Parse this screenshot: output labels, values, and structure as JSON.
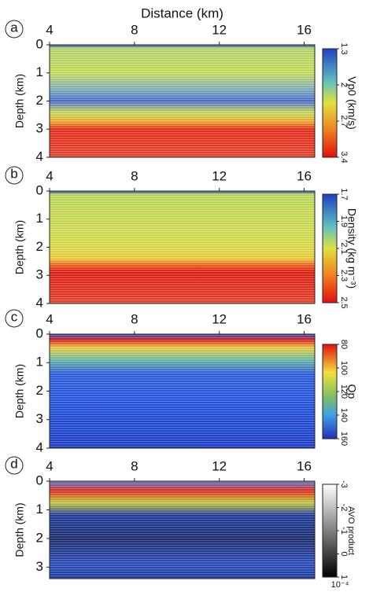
{
  "chart_data": [
    {
      "type": "image",
      "label": "a",
      "title": "Distance (km)",
      "ylabel": "Depth (km)",
      "xlim": [
        4,
        16.5
      ],
      "xticks": [
        4,
        8,
        12,
        16
      ],
      "ylim": [
        0,
        4
      ],
      "yticks": [
        0,
        1,
        2,
        3,
        4
      ],
      "colorbar": {
        "label": "Vp0 (km/s)",
        "lim": [
          1.3,
          3.4
        ],
        "ticks": [
          1.3,
          2,
          2.7,
          3.4
        ]
      }
    },
    {
      "type": "image",
      "label": "b",
      "ylabel": "Depth (km)",
      "xlim": [
        4,
        16.5
      ],
      "xticks": [
        4,
        8,
        12,
        16
      ],
      "ylim": [
        0,
        4
      ],
      "yticks": [
        0,
        1,
        2,
        3,
        4
      ],
      "colorbar": {
        "label": "Density (kg m⁻³)",
        "lim": [
          1.7,
          2.5
        ],
        "ticks": [
          1.7,
          1.9,
          2.1,
          2.3,
          2.5
        ]
      }
    },
    {
      "type": "image",
      "label": "c",
      "ylabel": "Depth (km)",
      "xlim": [
        4,
        16.5
      ],
      "xticks": [
        4,
        8,
        12,
        16
      ],
      "ylim": [
        0,
        4
      ],
      "yticks": [
        0,
        1,
        2,
        3,
        4
      ],
      "colorbar": {
        "label": "Qp",
        "lim": [
          80,
          160
        ],
        "ticks": [
          80,
          100,
          120,
          140,
          160
        ]
      }
    },
    {
      "type": "image",
      "label": "d",
      "ylabel": "Depth (km)",
      "xlim": [
        4,
        16.5
      ],
      "xticks": [
        4,
        8,
        12,
        16
      ],
      "ylim": [
        0,
        3.4
      ],
      "yticks": [
        0,
        1,
        2,
        3
      ],
      "colorbar": {
        "label": "AVO product",
        "multiplier": "10⁻⁴",
        "lim": [
          -3,
          1
        ],
        "ticks": [
          -3,
          -2,
          -1,
          0,
          1
        ]
      }
    }
  ]
}
